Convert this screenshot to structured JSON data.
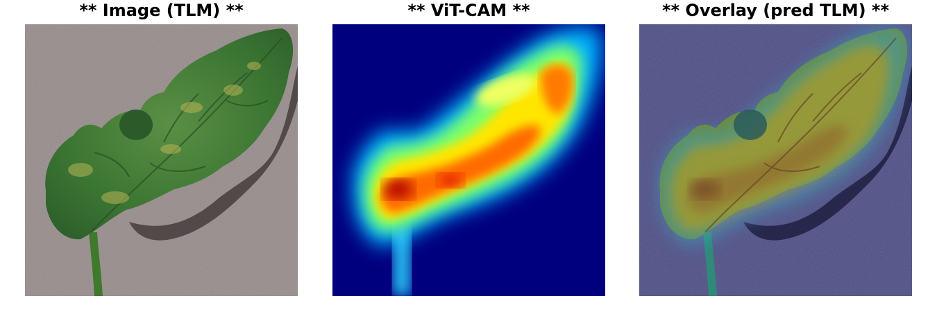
{
  "panels": [
    {
      "title": "** Image (TLM) **"
    },
    {
      "title": "** ViT-CAM **"
    },
    {
      "title": "** Overlay (pred TLM) **"
    }
  ],
  "colors": {
    "background": "#ffffff",
    "title_text": "#000000",
    "pavement": "#8f8484",
    "leaf_green": "#3a7a34",
    "heatmap_background": "#00007f",
    "overlay_tint": "#4a4b82"
  }
}
